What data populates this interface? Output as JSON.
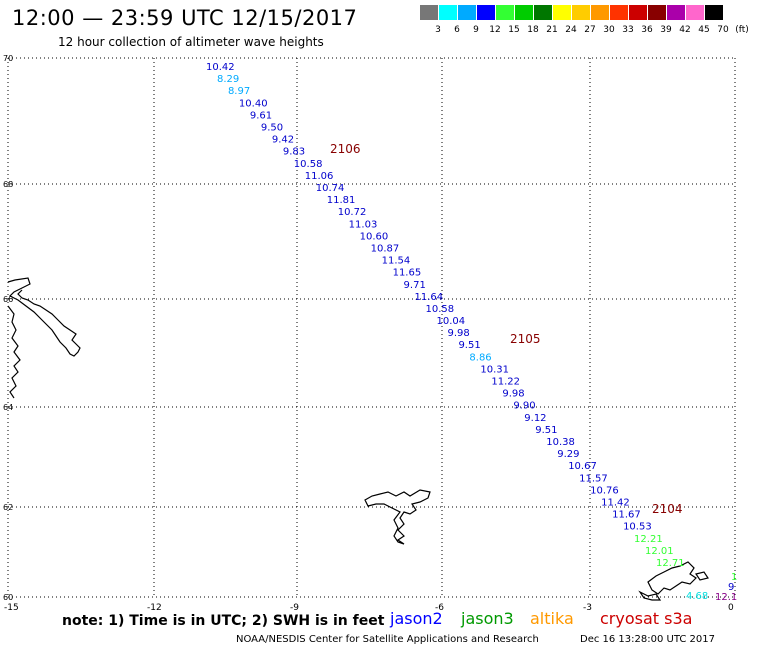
{
  "header": {
    "title": "12:00 — 23:59 UTC 12/15/2017",
    "subtitle": "12 hour collection of altimeter wave heights"
  },
  "legend": {
    "colors": [
      "#777777",
      "#00ffff",
      "#00aaff",
      "#0000ff",
      "#33ff33",
      "#00cc00",
      "#007700",
      "#ffff00",
      "#ffcc00",
      "#ff9900",
      "#ff3300",
      "#cc0000",
      "#880000",
      "#aa00aa",
      "#ff66cc",
      "#000000"
    ],
    "labels": [
      "3",
      "6",
      "9",
      "12",
      "15",
      "18",
      "21",
      "24",
      "27",
      "30",
      "33",
      "36",
      "39",
      "42",
      "45",
      "70",
      "(ft)"
    ]
  },
  "map": {
    "lat_labels": [
      "70",
      "68",
      "66",
      "64",
      "62",
      "60"
    ],
    "lon_labels": [
      "-15",
      "-12",
      "-9",
      "-6",
      "-3",
      "0"
    ],
    "track_points": [
      {
        "v": "10.42",
        "c": "#0000cc"
      },
      {
        "v": "8.29",
        "c": "#00aaff"
      },
      {
        "v": "8.97",
        "c": "#00aaff"
      },
      {
        "v": "10.40",
        "c": "#0000cc"
      },
      {
        "v": "9.61",
        "c": "#0000cc"
      },
      {
        "v": "9.50",
        "c": "#0000cc"
      },
      {
        "v": "9.42",
        "c": "#0000cc"
      },
      {
        "v": "9.83",
        "c": "#0000cc"
      },
      {
        "v": "10.58",
        "c": "#0000cc"
      },
      {
        "v": "11.06",
        "c": "#0000cc"
      },
      {
        "v": "10.74",
        "c": "#0000cc"
      },
      {
        "v": "11.81",
        "c": "#0000cc"
      },
      {
        "v": "10.72",
        "c": "#0000cc"
      },
      {
        "v": "11.03",
        "c": "#0000cc"
      },
      {
        "v": "10.60",
        "c": "#0000cc"
      },
      {
        "v": "10.87",
        "c": "#0000cc"
      },
      {
        "v": "11.54",
        "c": "#0000cc"
      },
      {
        "v": "11.65",
        "c": "#0000cc"
      },
      {
        "v": "9.71",
        "c": "#0000cc"
      },
      {
        "v": "11.64",
        "c": "#0000cc"
      },
      {
        "v": "10.58",
        "c": "#0000cc"
      },
      {
        "v": "10.04",
        "c": "#0000cc"
      },
      {
        "v": "9.98",
        "c": "#0000cc"
      },
      {
        "v": "9.51",
        "c": "#0000cc"
      },
      {
        "v": "8.86",
        "c": "#00aaff"
      },
      {
        "v": "10.31",
        "c": "#0000cc"
      },
      {
        "v": "11.22",
        "c": "#0000cc"
      },
      {
        "v": "9.98",
        "c": "#0000cc"
      },
      {
        "v": "9.90",
        "c": "#0000cc"
      },
      {
        "v": "9.12",
        "c": "#0000cc"
      },
      {
        "v": "9.51",
        "c": "#0000cc"
      },
      {
        "v": "10.38",
        "c": "#0000cc"
      },
      {
        "v": "9.29",
        "c": "#0000cc"
      },
      {
        "v": "10.67",
        "c": "#0000cc"
      },
      {
        "v": "11.57",
        "c": "#0000cc"
      },
      {
        "v": "10.76",
        "c": "#0000cc"
      },
      {
        "v": "11.42",
        "c": "#0000cc"
      },
      {
        "v": "11.67",
        "c": "#0000cc"
      },
      {
        "v": "10.53",
        "c": "#0000cc"
      },
      {
        "v": "12.21",
        "c": "#33ff33"
      },
      {
        "v": "12.01",
        "c": "#33ff33"
      },
      {
        "v": "12.71",
        "c": "#33ff33"
      }
    ],
    "track_ids": [
      "2106",
      "2105",
      "2104"
    ],
    "corner_values": [
      {
        "v": "4.68",
        "c": "#00dddd"
      },
      {
        "v": "12.1",
        "c": "#880088"
      },
      {
        "v": "9",
        "c": "#0000cc"
      },
      {
        "v": "1",
        "c": "#33ff33"
      }
    ]
  },
  "note": "note:  1) Time is in UTC; 2) SWH is in feet",
  "satellites": [
    {
      "name": "jason2",
      "color": "#0000ff"
    },
    {
      "name": "jason3",
      "color": "#009900"
    },
    {
      "name": "altika",
      "color": "#ff9900"
    },
    {
      "name": "cryosat s3a",
      "color": "#cc0000"
    }
  ],
  "footer": {
    "left": "NOAA/NESDIS Center for Satellite Applications and Research",
    "right": "Dec 16 13:28:00 UTC 2017"
  }
}
